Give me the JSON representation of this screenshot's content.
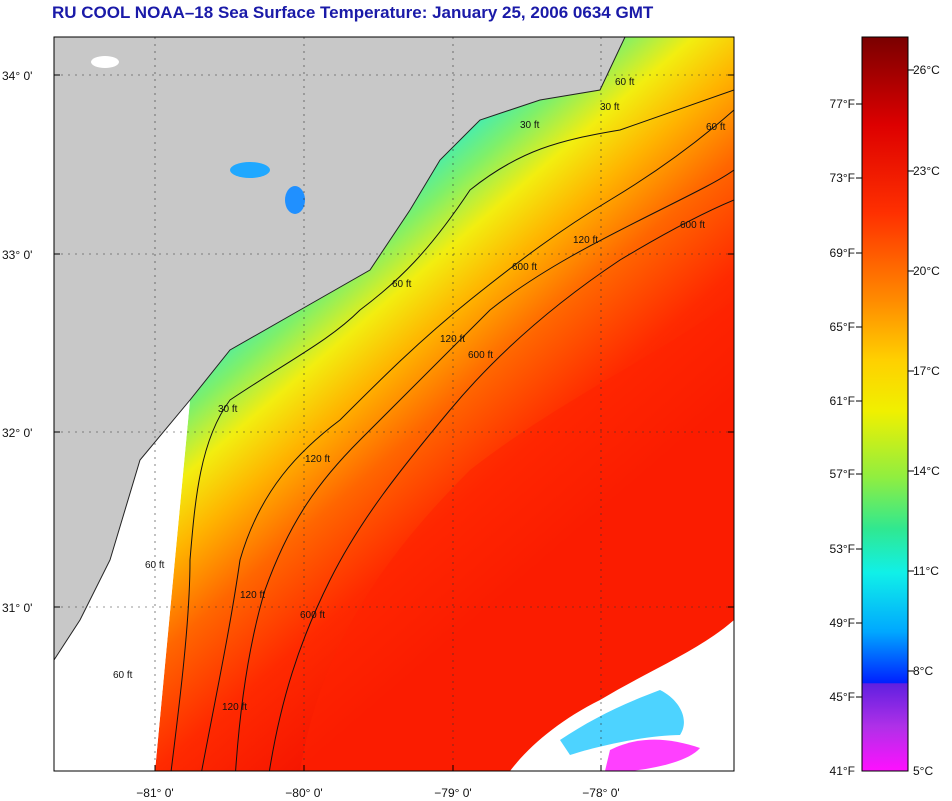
{
  "title": "RU COOL  NOAA–18  Sea Surface Temperature:  January 25, 2006 0634 GMT",
  "map": {
    "lat_labels": [
      "34° 0'",
      "33° 0'",
      "32° 0'",
      "31° 0'"
    ],
    "lon_labels": [
      "−81° 0'",
      "−80° 0'",
      "−79° 0'",
      "−78° 0'"
    ],
    "contours": {
      "c1": "30 ft",
      "c2": "60 ft",
      "c3": "120 ft",
      "c4": "600 ft",
      "c5": "60 ft",
      "c6": "120 ft",
      "c7": "600 ft",
      "c8": "30 ft",
      "c9": "60 ft",
      "c10": "120 ft",
      "c11": "600 ft",
      "c12": "60 ft",
      "c13": "30 ft",
      "c14": "120 ft",
      "c15": "120 ft",
      "c16": "60 ft",
      "c17": "600 ft"
    }
  },
  "legend": {
    "fahrenheit": [
      "77°F",
      "73°F",
      "69°F",
      "65°F",
      "61°F",
      "57°F",
      "53°F",
      "49°F",
      "45°F",
      "41°F"
    ],
    "celsius": [
      "26°C",
      "23°C",
      "20°C",
      "17°C",
      "14°C",
      "11°C",
      "8°C",
      "5°C"
    ]
  },
  "colors": {
    "land": "#c8c8c8",
    "title": "#1a1aa8",
    "warm": "#ff2200",
    "cool": "#00e8ff"
  }
}
